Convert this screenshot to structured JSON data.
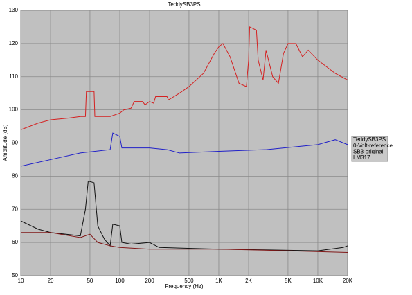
{
  "chart_data": {
    "type": "line",
    "title": "TeddySB3PS",
    "x_label": "Frequency (Hz)",
    "y_label": "Amplitude (dB)",
    "x_log": true,
    "grid": true,
    "xlim": [
      10,
      20000
    ],
    "ylim": [
      50,
      130
    ],
    "xticks": [
      10,
      20,
      50,
      100,
      200,
      500,
      {
        "value": 1000,
        "label": "1K"
      },
      {
        "value": 2000,
        "label": "2K"
      },
      {
        "value": 5000,
        "label": "5K"
      },
      {
        "value": 10000,
        "label": "10K"
      },
      {
        "value": 20000,
        "label": "20K"
      }
    ],
    "yticks": [
      50,
      60,
      70,
      80,
      90,
      100,
      110,
      120,
      130
    ],
    "legend": "right",
    "series": [
      {
        "name": "TeddySB3PS",
        "color": "#d42020",
        "x": [
          10,
          15,
          20,
          30,
          40,
          45,
          46,
          55,
          56,
          80,
          100,
          110,
          130,
          140,
          170,
          180,
          200,
          220,
          230,
          300,
          310,
          400,
          500,
          700,
          900,
          1000,
          1100,
          1300,
          1600,
          1900,
          2000,
          2050,
          2400,
          2500,
          2800,
          3000,
          3500,
          4000,
          4500,
          5000,
          6000,
          7000,
          8000,
          10000,
          15000,
          20000
        ],
        "values": [
          94,
          96,
          97,
          97.5,
          98,
          98,
          105.5,
          105.5,
          98,
          98,
          99,
          100,
          100.5,
          102.5,
          102.5,
          101.5,
          102.5,
          102,
          104,
          104,
          103,
          105,
          107,
          111,
          117,
          119,
          120,
          116,
          108,
          107,
          115,
          125,
          124,
          115,
          109,
          118,
          110,
          108,
          117,
          120,
          120,
          116,
          118,
          115,
          111,
          109
        ]
      },
      {
        "name": "0-Volt-reference",
        "color": "#2020c8",
        "x": [
          10,
          20,
          40,
          80,
          85,
          100,
          105,
          200,
          300,
          400,
          1000,
          3000,
          10000,
          15000,
          20000
        ],
        "values": [
          83,
          85,
          87,
          88,
          93,
          92,
          88.5,
          88.5,
          88,
          87,
          87.5,
          88,
          89.5,
          91,
          89.5
        ]
      },
      {
        "name": "SB3-original",
        "color": "#101010",
        "x": [
          10,
          15,
          20,
          40,
          45,
          48,
          55,
          60,
          70,
          80,
          85,
          100,
          105,
          130,
          200,
          250,
          1000,
          10000,
          18000,
          20000
        ],
        "values": [
          66.5,
          64,
          63,
          62,
          70,
          78.5,
          78,
          65,
          61,
          59,
          65.5,
          65,
          60,
          59.5,
          60,
          58.5,
          58,
          57.5,
          58.5,
          59
        ]
      },
      {
        "name": "LM317",
        "color": "#801818",
        "x": [
          10,
          20,
          40,
          50,
          60,
          80,
          100,
          200,
          1000,
          5000,
          20000
        ],
        "values": [
          63,
          63,
          61.5,
          62.5,
          60,
          59,
          58.5,
          58,
          58,
          57.5,
          57
        ]
      }
    ]
  }
}
